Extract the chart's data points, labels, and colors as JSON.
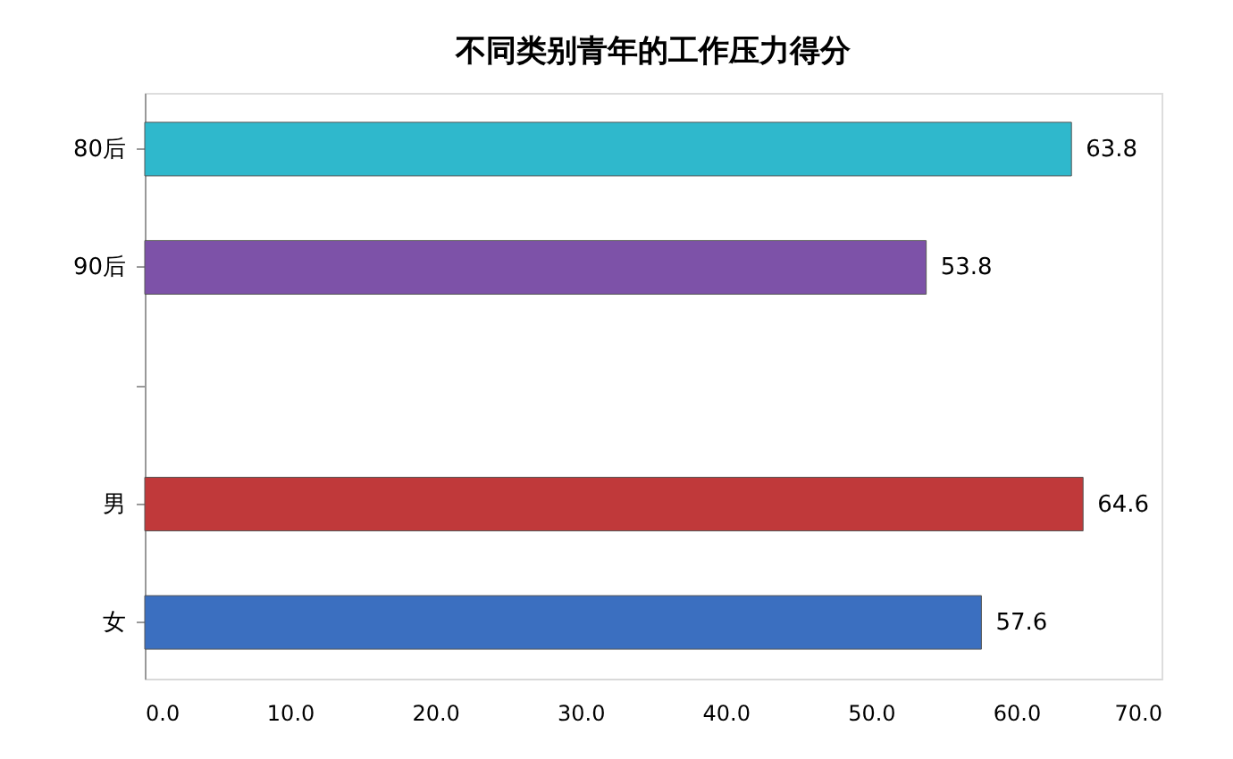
{
  "chart_data": {
    "type": "bar",
    "orientation": "horizontal",
    "title": "不同类别青年的工作压力得分",
    "categories": [
      "80后",
      "90后",
      null,
      "男",
      "女"
    ],
    "values": [
      63.8,
      53.8,
      null,
      64.6,
      57.6
    ],
    "colors": [
      "#2fb8cc",
      "#7d52a8",
      "#ffffff",
      "#c0393a",
      "#3b6fc0"
    ],
    "xlim": [
      0,
      70
    ],
    "xticks": [
      {
        "value": 0,
        "label": "0.0"
      },
      {
        "value": 10,
        "label": "10.0"
      },
      {
        "value": 20,
        "label": "20.0"
      },
      {
        "value": 30,
        "label": "30.0"
      },
      {
        "value": 40,
        "label": "40.0"
      },
      {
        "value": 50,
        "label": "50.0"
      },
      {
        "value": 60,
        "label": "60.0"
      },
      {
        "value": 70,
        "label": "70.0"
      }
    ],
    "data_labels": true,
    "grid": false
  }
}
